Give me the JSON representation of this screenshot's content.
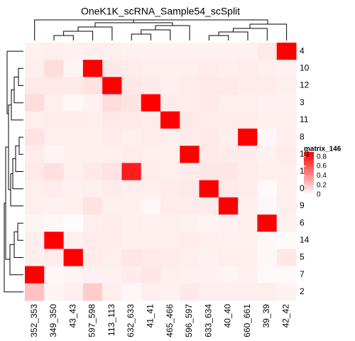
{
  "chart_data": {
    "type": "heatmap",
    "title": "OneK1K_scRNA_Sample54_scSplit",
    "columns": [
      "352_353",
      "349_350",
      "43_43",
      "597_598",
      "113_113",
      "632_633",
      "41_41",
      "465_466",
      "596_597",
      "633_634",
      "40_40",
      "660_661",
      "39_39",
      "42_42"
    ],
    "rows": [
      "4",
      "10",
      "12",
      "3",
      "11",
      "8",
      "13",
      "1",
      "0",
      "9",
      "6",
      "14",
      "5",
      "7",
      "2"
    ],
    "values": [
      [
        0.05,
        0.06,
        0.05,
        0.06,
        0.06,
        0.05,
        0.05,
        0.05,
        0.05,
        0.05,
        0.05,
        0.05,
        0.08,
        0.9
      ],
      [
        0.06,
        0.12,
        0.04,
        0.9,
        0.08,
        0.07,
        0.06,
        0.06,
        0.06,
        0.07,
        0.06,
        0.07,
        0.06,
        0.05
      ],
      [
        0.08,
        0.08,
        0.08,
        0.1,
        0.9,
        0.08,
        0.07,
        0.06,
        0.07,
        0.08,
        0.08,
        0.07,
        0.07,
        0.06
      ],
      [
        0.12,
        0.06,
        0.03,
        0.05,
        0.12,
        0.1,
        0.9,
        0.07,
        0.07,
        0.08,
        0.06,
        0.06,
        0.05,
        0.05
      ],
      [
        0.06,
        0.07,
        0.07,
        0.06,
        0.08,
        0.08,
        0.07,
        0.9,
        0.08,
        0.07,
        0.07,
        0.07,
        0.06,
        0.06
      ],
      [
        0.1,
        0.06,
        0.06,
        0.06,
        0.07,
        0.06,
        0.07,
        0.06,
        0.07,
        0.08,
        0.06,
        0.9,
        0.03,
        0.06
      ],
      [
        0.07,
        0.04,
        0.06,
        0.06,
        0.06,
        0.07,
        0.06,
        0.06,
        0.9,
        0.08,
        0.07,
        0.07,
        0.05,
        0.07
      ],
      [
        0.08,
        0.11,
        0.06,
        0.08,
        0.1,
        0.8,
        0.07,
        0.06,
        0.07,
        0.09,
        0.09,
        0.07,
        0.06,
        0.06
      ],
      [
        0.06,
        0.07,
        0.05,
        0.06,
        0.07,
        0.06,
        0.06,
        0.07,
        0.08,
        0.9,
        0.08,
        0.07,
        0.02,
        0.06
      ],
      [
        0.06,
        0.05,
        0.06,
        0.1,
        0.06,
        0.06,
        0.03,
        0.07,
        0.07,
        0.07,
        0.9,
        0.06,
        0.03,
        0.06
      ],
      [
        0.04,
        0.03,
        0.01,
        0.06,
        0.07,
        0.06,
        0.05,
        0.06,
        0.05,
        0.04,
        0.05,
        0.06,
        0.9,
        0.05
      ],
      [
        0.06,
        0.9,
        0.06,
        0.07,
        0.07,
        0.06,
        0.06,
        0.06,
        0.07,
        0.06,
        0.05,
        0.05,
        0.03,
        0.02
      ],
      [
        0.06,
        0.07,
        0.9,
        0.07,
        0.06,
        0.09,
        0.08,
        0.07,
        0.06,
        0.05,
        0.06,
        0.06,
        0.03,
        0.08
      ],
      [
        0.9,
        0.03,
        0.04,
        0.05,
        0.05,
        0.07,
        0.09,
        0.06,
        0.05,
        0.05,
        0.04,
        0.05,
        0.02,
        0.02
      ],
      [
        0.22,
        0.04,
        0.06,
        0.18,
        0.06,
        0.03,
        0.06,
        0.05,
        0.08,
        0.06,
        0.06,
        0.06,
        0.06,
        0.05
      ]
    ],
    "color_low": "#ffffff",
    "color_high": "#ff0000",
    "clim": [
      0,
      0.9
    ],
    "legend_title": "matrix_146",
    "legend_ticks": [
      0,
      0.2,
      0.4,
      0.6,
      0.8
    ]
  }
}
